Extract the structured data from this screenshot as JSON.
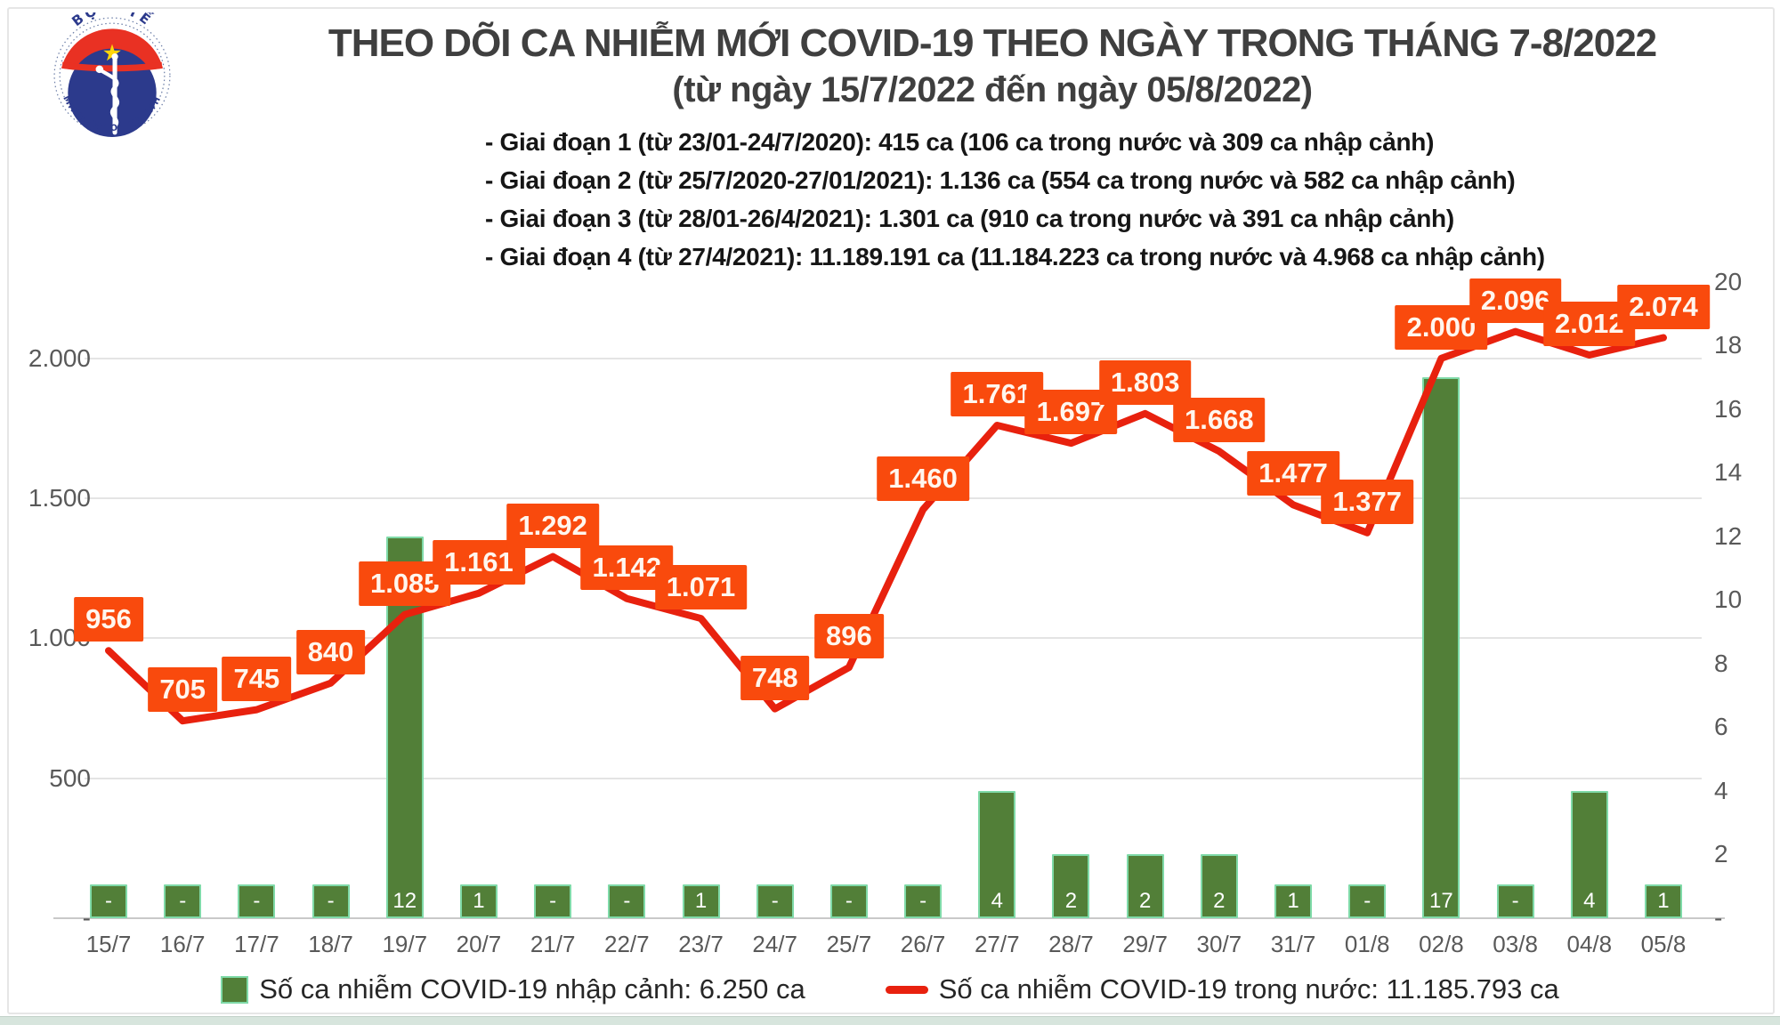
{
  "header": {
    "title": "THEO DÕI CA NHIỄM MỚI COVID-19 THEO NGÀY TRONG THÁNG 7-8/2022",
    "subtitle": "(từ ngày 15/7/2022 đến ngày 05/8/2022)"
  },
  "logo": {
    "top_text": "BỘ Y TẾ",
    "bottom_text": "MINISTRY OF HEALTH",
    "colors": {
      "blue": "#2c3a8c",
      "red": "#e93123",
      "star": "#ffd60a"
    }
  },
  "stages": [
    "- Giai đoạn 1 (từ 23/01-24/7/2020): 415 ca (106 ca trong nước và 309 ca nhập cảnh)",
    "- Giai đoạn 2 (từ 25/7/2020-27/01/2021): 1.136 ca (554 ca trong nước và 582 ca nhập cảnh)",
    "- Giai đoạn 3 (từ 28/01-26/4/2021): 1.301 ca (910 ca trong nước và 391 ca nhập cảnh)",
    "- Giai đoạn 4 (từ 27/4/2021): 11.189.191 ca (11.184.223 ca trong nước và 4.968 ca nhập cảnh)"
  ],
  "chart_data": {
    "type": "bar+line combo, dual axis",
    "categories": [
      "15/7",
      "16/7",
      "17/7",
      "18/7",
      "19/7",
      "20/7",
      "21/7",
      "22/7",
      "23/7",
      "24/7",
      "25/7",
      "26/7",
      "27/7",
      "28/7",
      "29/7",
      "30/7",
      "31/7",
      "01/8",
      "02/8",
      "03/8",
      "04/8",
      "05/8"
    ],
    "series": [
      {
        "name": "Số ca nhiễm COVID-19 nhập cảnh",
        "type": "bar",
        "axis": "right",
        "color": "#527f38",
        "border_color": "#7fdaa8",
        "values": [
          null,
          null,
          null,
          null,
          12,
          1,
          null,
          null,
          1,
          null,
          null,
          null,
          4,
          2,
          2,
          2,
          1,
          null,
          17,
          null,
          4,
          1
        ],
        "labels": [
          "-",
          "-",
          "-",
          "-",
          "12",
          "1",
          "-",
          "-",
          "1",
          "-",
          "-",
          "-",
          "4",
          "2",
          "2",
          "2",
          "1",
          "-",
          "17",
          "-",
          "4",
          "1"
        ]
      },
      {
        "name": "Số ca nhiễm COVID-19 trong nước",
        "type": "line",
        "axis": "left",
        "color": "#e8210e",
        "label_bg": "#f94a0d",
        "values": [
          956,
          705,
          745,
          840,
          1085,
          1161,
          1292,
          1142,
          1071,
          748,
          896,
          1460,
          1761,
          1697,
          1803,
          1668,
          1477,
          1377,
          2000,
          2096,
          2012,
          2074
        ],
        "labels": [
          "956",
          "705",
          "745",
          "840",
          "1.085",
          "1.161",
          "1.292",
          "1.142",
          "1.071",
          "748",
          "896",
          "1.460",
          "1.761",
          "1.697",
          "1.803",
          "1.668",
          "1.477",
          "1.377",
          "2.000",
          "2.096",
          "2.012",
          "2.074"
        ]
      }
    ],
    "left_axis": {
      "ticks": [
        {
          "label": "-",
          "value": 0
        },
        {
          "label": "500",
          "value": 500
        },
        {
          "label": "1.000",
          "value": 1000
        },
        {
          "label": "1.500",
          "value": 1500
        },
        {
          "label": "2.000",
          "value": 2000
        }
      ],
      "gridline_values": [
        500,
        1000,
        1500,
        2000
      ]
    },
    "right_axis": {
      "ticks": [
        {
          "label": "-",
          "value": 0
        },
        {
          "label": "2",
          "value": 2
        },
        {
          "label": "4",
          "value": 4
        },
        {
          "label": "6",
          "value": 6
        },
        {
          "label": "8",
          "value": 8
        },
        {
          "label": "10",
          "value": 10
        },
        {
          "label": "12",
          "value": 12
        },
        {
          "label": "14",
          "value": 14
        },
        {
          "label": "16",
          "value": 16
        },
        {
          "label": "18",
          "value": 18
        },
        {
          "label": "20",
          "value": 20
        }
      ]
    },
    "legend": [
      {
        "label": "Số ca nhiễm COVID-19 nhập cảnh: 6.250 ca",
        "swatch": "bar"
      },
      {
        "label": "Số ca nhiễm COVID-19 trong nước: 11.185.793 ca",
        "swatch": "line"
      }
    ]
  }
}
